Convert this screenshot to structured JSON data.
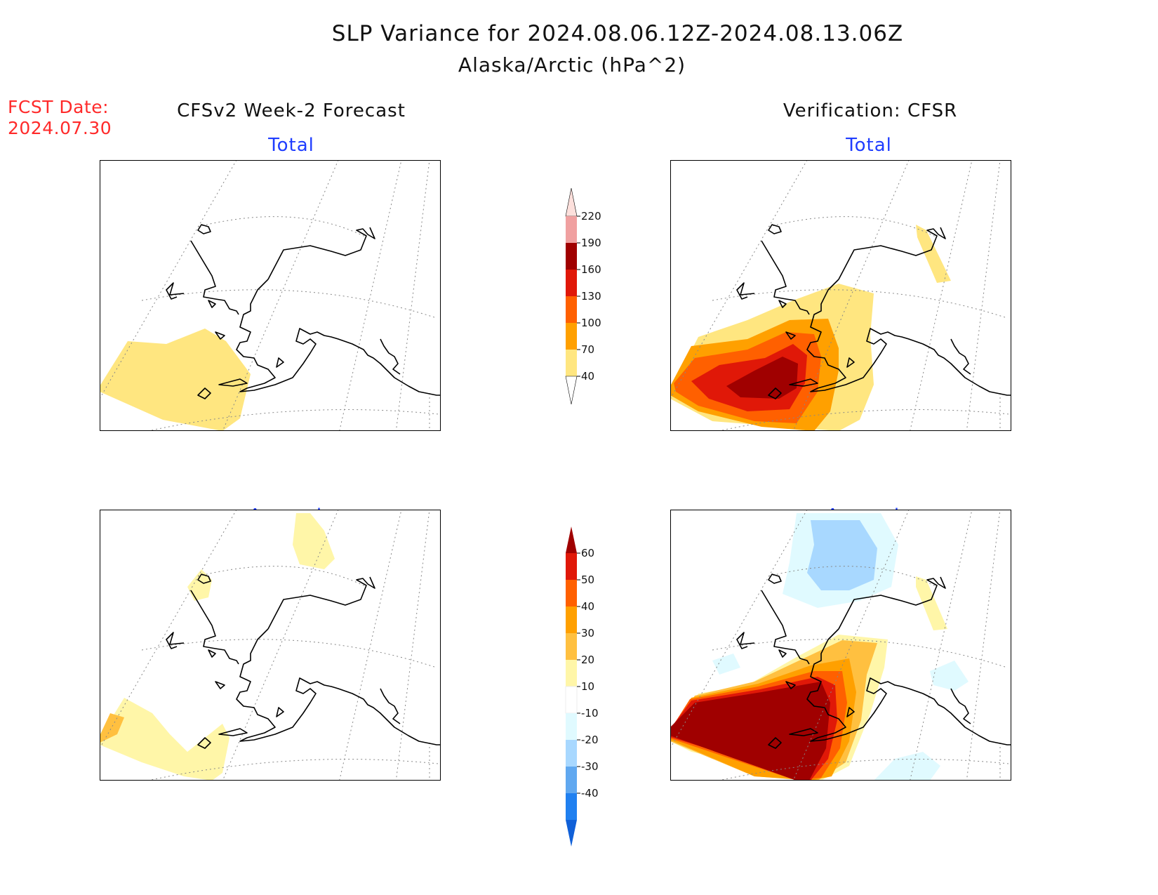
{
  "header": {
    "title": "SLP Variance for 2024.08.06.12Z-2024.08.13.06Z",
    "subtitle": "Alaska/Arctic (hPa^2)",
    "fcst_label": "FCST Date:",
    "fcst_date": "2024.07.30"
  },
  "columns": {
    "left": "CFSv2 Week-2 Forecast",
    "right": "Verification: CFSR"
  },
  "panels": {
    "fcst_total": "Total",
    "verif_total": "Total",
    "fcst_anomaly": "Anomaly",
    "verif_anomaly": "Anomaly"
  },
  "colorbar_total": {
    "labels": [
      "220",
      "190",
      "160",
      "130",
      "100",
      "70",
      "40"
    ],
    "colors": [
      "#fde0dc",
      "#f0a0a0",
      "#a00000",
      "#e01808",
      "#ff6000",
      "#ffa000",
      "#ffe680"
    ]
  },
  "colorbar_anomaly": {
    "labels": [
      "60",
      "50",
      "40",
      "30",
      "20",
      "10",
      "-10",
      "-20",
      "-30",
      "-40"
    ],
    "colors": [
      "#a00000",
      "#e01808",
      "#ff6000",
      "#ffa000",
      "#ffc040",
      "#fff6a8",
      "#ffffff",
      "#e0faff",
      "#a8d8ff",
      "#60a8f0",
      "#2080f0",
      "#1060d8"
    ]
  }
}
